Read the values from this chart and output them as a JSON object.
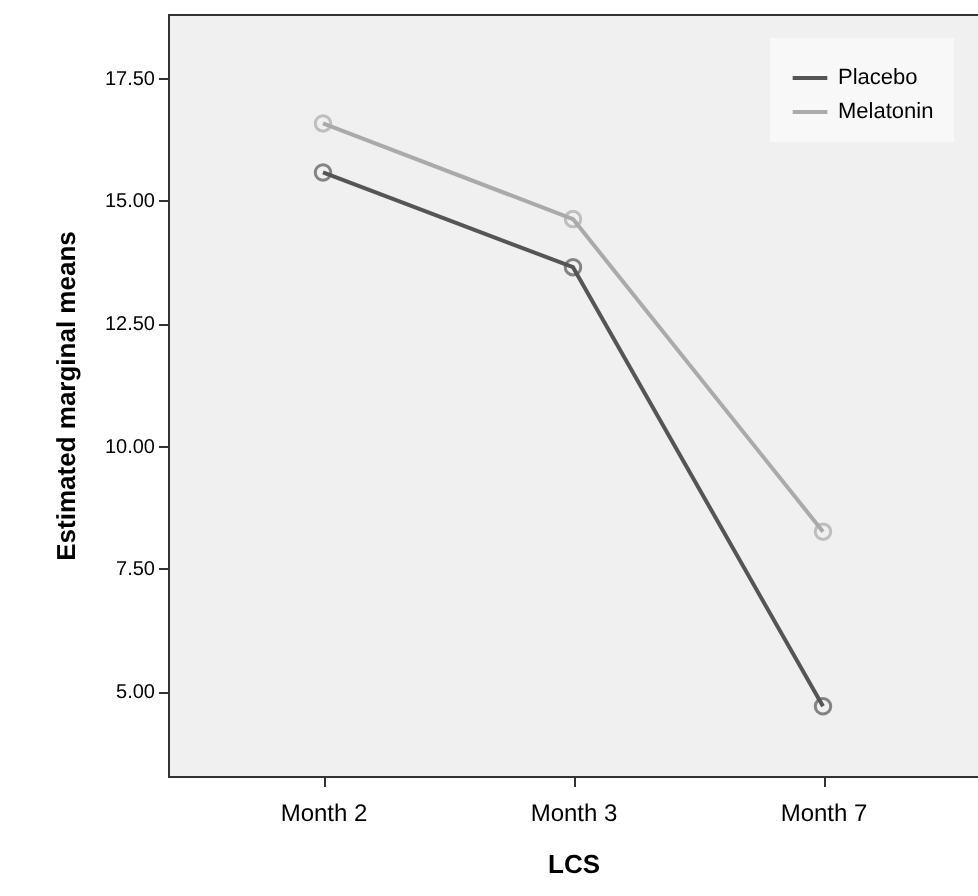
{
  "chart_data": {
    "type": "line",
    "xlabel": "LCS",
    "ylabel": "Estimated marginal means",
    "categories": [
      "Month 2",
      "Month 3",
      "Month 7"
    ],
    "series": [
      {
        "name": "Placebo",
        "color": "#555555",
        "values": [
          15.57,
          13.64,
          4.69
        ]
      },
      {
        "name": "Melatonin",
        "color": "#aaaaaa",
        "values": [
          16.57,
          14.62,
          8.25
        ]
      }
    ],
    "ylim": [
      3.27,
      18.8
    ],
    "yticks": [
      {
        "value": 5,
        "label": "5.00"
      },
      {
        "value": 7.5,
        "label": "7.50"
      },
      {
        "value": 10,
        "label": "10.00"
      },
      {
        "value": 12.5,
        "label": "12.50"
      },
      {
        "value": 15,
        "label": "15.00"
      },
      {
        "value": 17.5,
        "label": "17.50"
      }
    ],
    "marker": "circle",
    "legend": "top right",
    "grid": false
  }
}
